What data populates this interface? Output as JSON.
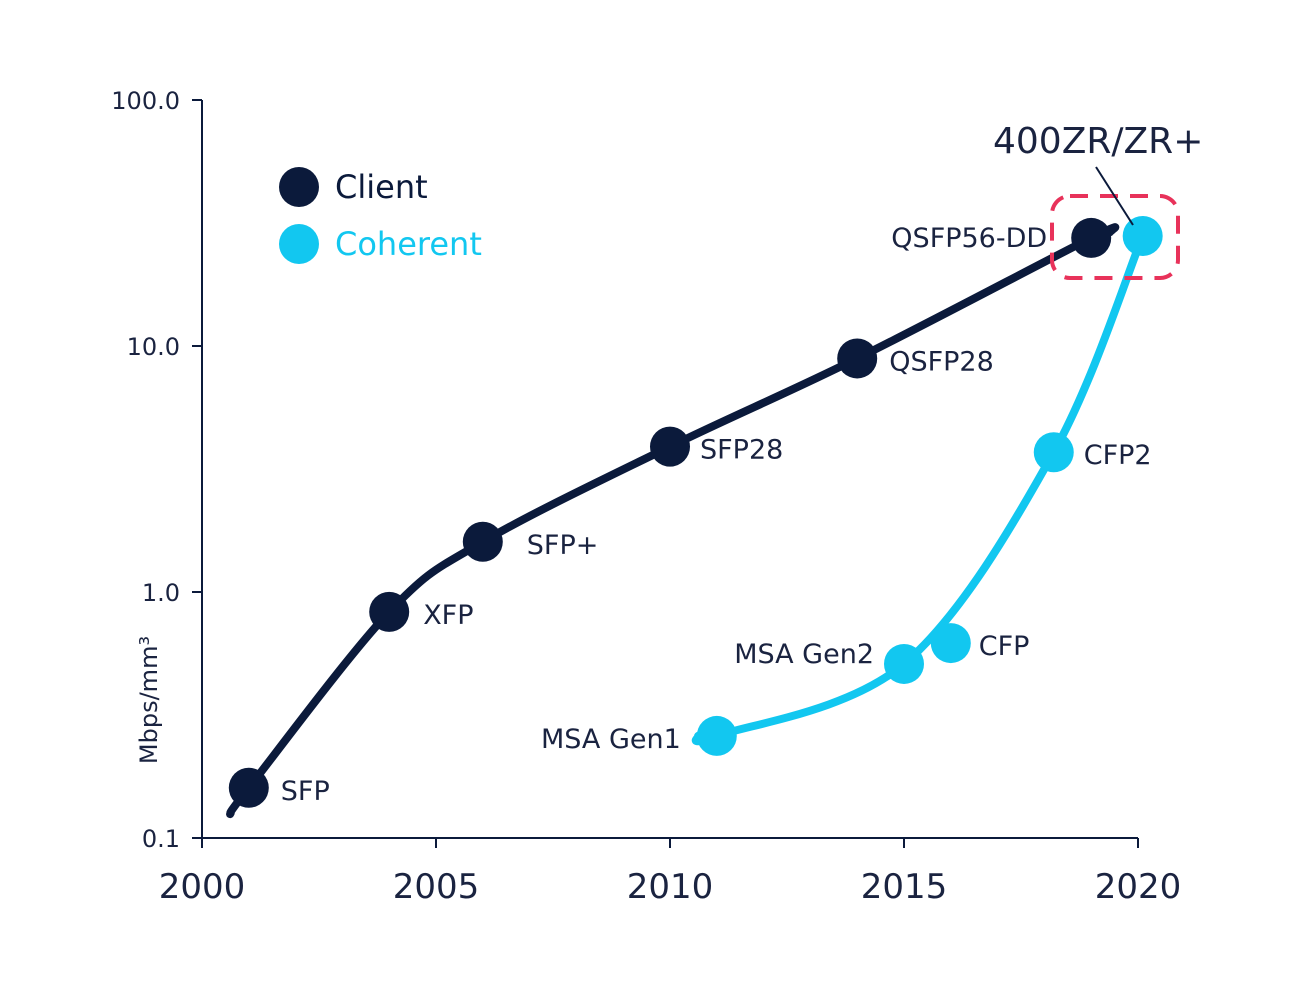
{
  "chart_data": {
    "type": "line",
    "y_scale": "log",
    "xlim": [
      2000,
      2020
    ],
    "ylim": [
      0.1,
      100
    ],
    "x_ticks": [
      2000,
      2005,
      2010,
      2015,
      2020
    ],
    "x_tick_labels": [
      "2000",
      "2005",
      "2010",
      "2015",
      "2020"
    ],
    "y_ticks": [
      0.1,
      1,
      10,
      100
    ],
    "y_tick_labels": [
      "0.1",
      "1.0",
      "10.0",
      "100.0"
    ],
    "ylabel": "Mbps/mm³",
    "xlabel": "",
    "title": "",
    "grid": false,
    "legend_position": "top-left",
    "series": [
      {
        "name": "Client",
        "color": "#0b1a3b",
        "points": [
          {
            "x": 2001,
            "y": 0.16,
            "label": "SFP"
          },
          {
            "x": 2004,
            "y": 0.83,
            "label": "XFP"
          },
          {
            "x": 2006,
            "y": 1.6,
            "label": "SFP+"
          },
          {
            "x": 2010,
            "y": 3.9,
            "label": "SFP28"
          },
          {
            "x": 2014,
            "y": 8.9,
            "label": "QSFP28"
          },
          {
            "x": 2019,
            "y": 27.5,
            "label": "QSFP56-DD"
          }
        ],
        "curve": [
          {
            "x": 2000.6,
            "y": 0.125
          },
          {
            "x": 2001,
            "y": 0.16
          },
          {
            "x": 2004,
            "y": 0.83
          },
          {
            "x": 2006,
            "y": 1.6
          },
          {
            "x": 2010,
            "y": 3.9
          },
          {
            "x": 2014,
            "y": 8.9
          },
          {
            "x": 2019,
            "y": 27.5
          },
          {
            "x": 2019.4,
            "y": 29
          }
        ]
      },
      {
        "name": "Coherent",
        "color": "#12c7f0",
        "points": [
          {
            "x": 2011,
            "y": 0.26,
            "label": "MSA Gen1"
          },
          {
            "x": 2015,
            "y": 0.51,
            "label": "MSA Gen2"
          },
          {
            "x": 2016,
            "y": 0.62,
            "label": "CFP"
          },
          {
            "x": 2018.2,
            "y": 3.7,
            "label": "CFP2"
          },
          {
            "x": 2020.1,
            "y": 28,
            "label": ""
          }
        ],
        "curve": [
          {
            "x": 2010.6,
            "y": 0.26
          },
          {
            "x": 2011,
            "y": 0.26
          },
          {
            "x": 2015,
            "y": 0.51
          },
          {
            "x": 2018.2,
            "y": 3.7
          },
          {
            "x": 2020.1,
            "y": 28
          }
        ]
      }
    ],
    "annotations": [
      {
        "text": "400ZR/ZR+",
        "target": "highlight box around 2020 points",
        "color": "#e8325a"
      }
    ]
  }
}
